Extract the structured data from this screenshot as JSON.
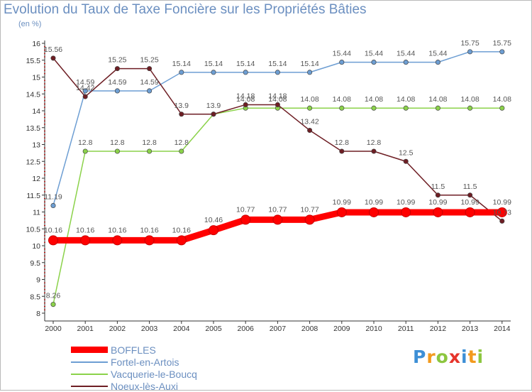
{
  "chart_data": {
    "type": "line",
    "title": "Evolution du Taux de Taxe Foncière sur les Propriétés Bâties",
    "ylabel": "(en %)",
    "xlabel": "",
    "x": [
      "2000",
      "2001",
      "2002",
      "2003",
      "2004",
      "2005",
      "2006",
      "2007",
      "2008",
      "2009",
      "2010",
      "2011",
      "2012",
      "2013",
      "2014"
    ],
    "ylim": [
      8,
      16
    ],
    "yticks": [
      "8",
      "8.5",
      "9",
      "9.5",
      "10",
      "10.5",
      "11",
      "11.5",
      "12",
      "12.5",
      "13",
      "13.5",
      "14",
      "14.5",
      "15",
      "15.5",
      "16"
    ],
    "grid": false,
    "legend_position": "bottom-left",
    "series": [
      {
        "name": "Vacquerie-le-Boucq",
        "color": "#8bd24a",
        "values": [
          8.26,
          12.8,
          12.8,
          12.8,
          12.8,
          13.9,
          14.08,
          14.08,
          14.08,
          14.08,
          14.08,
          14.08,
          14.08,
          14.08,
          14.08
        ],
        "labels": [
          "8.26",
          "12.8",
          "12.8",
          "12.8",
          "12.8",
          "13.9",
          "14.08",
          "14.08",
          "14.08",
          "14.08",
          "14.08",
          "14.08",
          "14.08",
          "14.08",
          "14.08"
        ]
      },
      {
        "name": "Fortel-en-Artois",
        "color": "#6d9ed3",
        "values": [
          11.19,
          14.59,
          14.59,
          14.59,
          15.14,
          15.14,
          15.14,
          15.14,
          15.14,
          15.44,
          15.44,
          15.44,
          15.44,
          15.75,
          15.75
        ],
        "labels": [
          "11.19",
          "14.59",
          "14.59",
          "14.59",
          "15.14",
          "15.14",
          "15.14",
          "15.14",
          "15.14",
          "15.44",
          "15.44",
          "15.44",
          "15.44",
          "15.75",
          "15.75"
        ]
      },
      {
        "name": "Noeux-lès-Auxi",
        "color": "#6e1e24",
        "values": [
          15.56,
          14.42,
          15.25,
          15.25,
          13.9,
          13.9,
          14.18,
          14.18,
          13.42,
          12.8,
          12.8,
          12.5,
          11.5,
          11.5,
          10.73
        ],
        "labels": [
          "15.56",
          "14.42",
          "15.25",
          "15.25",
          "13.9",
          "",
          "14.18",
          "14.18",
          "13.42",
          "12.8",
          "12.8",
          "12.5",
          "11.5",
          "11.5",
          "10.73"
        ]
      },
      {
        "name": "BOFFLES",
        "color": "#ff0000",
        "values": [
          10.16,
          10.16,
          10.16,
          10.16,
          10.16,
          10.46,
          10.77,
          10.77,
          10.77,
          10.99,
          10.99,
          10.99,
          10.99,
          10.99,
          10.99
        ],
        "labels": [
          "10.16",
          "10.16",
          "10.16",
          "10.16",
          "10.16",
          "10.46",
          "10.77",
          "10.77",
          "10.77",
          "10.99",
          "10.99",
          "10.99",
          "10.99",
          "10.99",
          "10.99"
        ]
      }
    ],
    "legend": [
      "BOFFLES",
      "Fortel-en-Artois",
      "Vacquerie-le-Boucq",
      "Noeux-lès-Auxi"
    ]
  },
  "logo": {
    "letters": [
      "P",
      "r",
      "o",
      "x",
      "i",
      "t",
      "i"
    ],
    "colors": [
      "#3d8fd6",
      "#f29a1e",
      "#8cc63f",
      "#e6342b",
      "#3d8fd6",
      "#f29a1e",
      "#8cc63f"
    ]
  }
}
